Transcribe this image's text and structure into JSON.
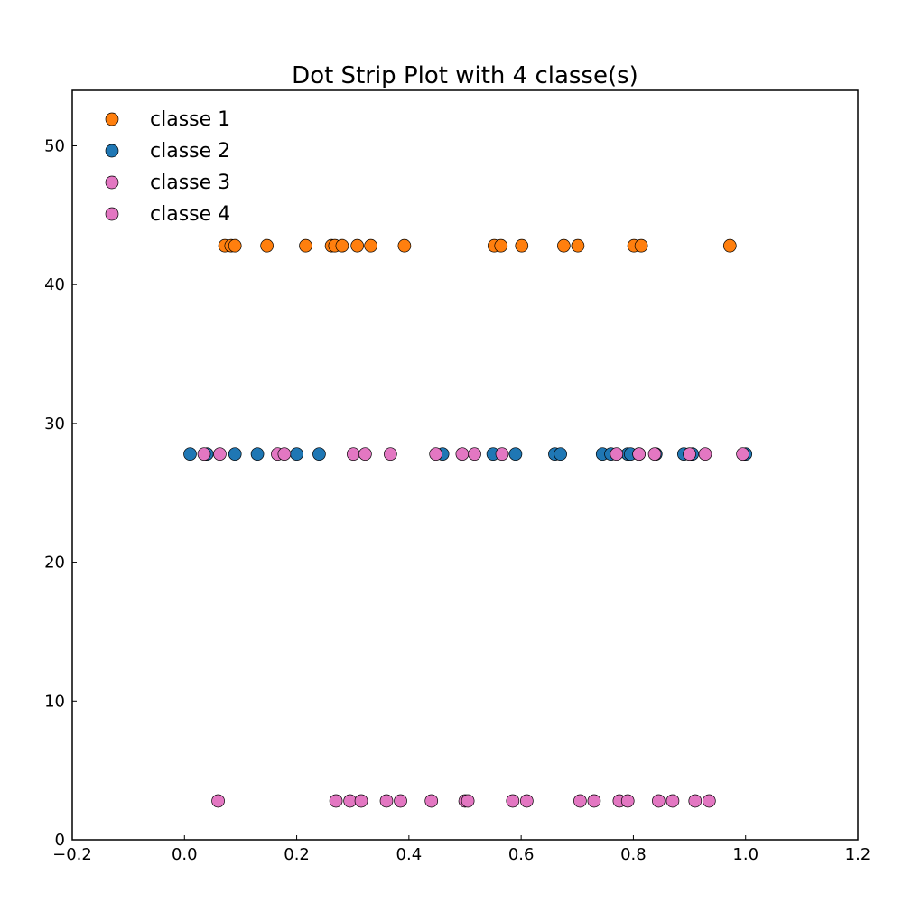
{
  "chart_data": {
    "type": "scatter",
    "title": "Dot Strip Plot with 4 classe(s)",
    "xlabel": "",
    "ylabel": "",
    "xlim": [
      -0.2,
      1.2
    ],
    "ylim": [
      0,
      54
    ],
    "xticks": [
      -0.2,
      0.0,
      0.2,
      0.4,
      0.6,
      0.8,
      1.0,
      1.2
    ],
    "xtick_labels": [
      "−0.2",
      "0.0",
      "0.2",
      "0.4",
      "0.6",
      "0.8",
      "1.0",
      "1.2"
    ],
    "yticks": [
      0,
      10,
      20,
      30,
      40,
      50
    ],
    "ytick_labels": [
      "0",
      "10",
      "20",
      "30",
      "40",
      "50"
    ],
    "grid": false,
    "legend_position": "top-left",
    "series": [
      {
        "name": "classe 1",
        "color": "#ff7f0e",
        "y": 42.8,
        "x": [
          0.072,
          0.083,
          0.09,
          0.147,
          0.216,
          0.262,
          0.268,
          0.281,
          0.308,
          0.332,
          0.392,
          0.552,
          0.564,
          0.601,
          0.676,
          0.701,
          0.801,
          0.814,
          0.972
        ]
      },
      {
        "name": "classe 2",
        "color": "#1f77b4",
        "y": 27.8,
        "x": [
          0.01,
          0.04,
          0.09,
          0.13,
          0.2,
          0.24,
          0.46,
          0.55,
          0.59,
          0.66,
          0.67,
          0.745,
          0.76,
          0.79,
          0.795,
          0.81,
          0.84,
          0.89,
          0.905,
          1.0
        ]
      },
      {
        "name": "classe 3",
        "color": "#e377c2",
        "y": 2.8,
        "x": [
          0.06,
          0.27,
          0.295,
          0.315,
          0.36,
          0.385,
          0.44,
          0.5,
          0.505,
          0.585,
          0.61,
          0.705,
          0.73,
          0.775,
          0.79,
          0.845,
          0.87,
          0.91,
          0.935
        ]
      },
      {
        "name": "classe 4",
        "color": "#e377c2",
        "y": 27.8,
        "x": [
          0.035,
          0.063,
          0.166,
          0.178,
          0.301,
          0.322,
          0.367,
          0.448,
          0.495,
          0.517,
          0.566,
          0.77,
          0.81,
          0.838,
          0.9,
          0.928,
          0.995
        ]
      }
    ]
  }
}
